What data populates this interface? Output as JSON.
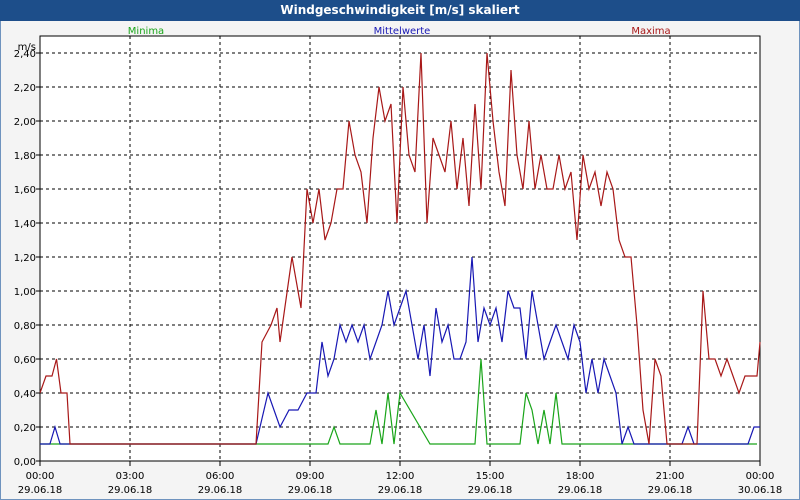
{
  "chart_data": {
    "type": "line",
    "title": "Windgeschwindigkeit [m/s] skaliert",
    "ylabel": "m/s",
    "ylim": [
      0,
      2.5
    ],
    "yticks": [
      "0,00",
      "0,20",
      "0,40",
      "0,60",
      "0,80",
      "1,00",
      "1,20",
      "1,40",
      "1,60",
      "1,80",
      "2,00",
      "2,20",
      "2,40"
    ],
    "xlim_hours": [
      0,
      24
    ],
    "xticks": [
      {
        "time": "00:00",
        "date": "29.06.18"
      },
      {
        "time": "03:00",
        "date": "29.06.18"
      },
      {
        "time": "06:00",
        "date": "29.06.18"
      },
      {
        "time": "09:00",
        "date": "29.06.18"
      },
      {
        "time": "12:00",
        "date": "29.06.18"
      },
      {
        "time": "15:00",
        "date": "29.06.18"
      },
      {
        "time": "18:00",
        "date": "29.06.18"
      },
      {
        "time": "21:00",
        "date": "29.06.18"
      },
      {
        "time": "00:00",
        "date": "30.06.18"
      }
    ],
    "series": [
      {
        "name": "Minima",
        "color": "#1aa51a",
        "x": [
          0,
          0.33,
          0.5,
          0.67,
          7.2,
          9.6,
          9.8,
          10.0,
          11.0,
          11.2,
          11.4,
          11.6,
          11.8,
          12.0,
          13.0,
          13.5,
          13.8,
          14.5,
          14.7,
          14.9,
          16.0,
          16.2,
          16.4,
          16.6,
          16.8,
          17.0,
          17.2,
          17.4,
          17.6,
          17.8,
          18.0,
          23.9
        ],
        "values": [
          0.1,
          0.1,
          0.1,
          0.1,
          0.1,
          0.1,
          0.2,
          0.1,
          0.1,
          0.3,
          0.1,
          0.4,
          0.1,
          0.4,
          0.1,
          0.1,
          0.1,
          0.1,
          0.6,
          0.1,
          0.1,
          0.4,
          0.3,
          0.1,
          0.3,
          0.1,
          0.4,
          0.1,
          0.1,
          0.1,
          0.1,
          0.1
        ]
      },
      {
        "name": "Mittelwerte",
        "color": "#1818b4",
        "x": [
          0,
          0.33,
          0.5,
          0.67,
          0.8,
          7.2,
          7.6,
          8.0,
          8.3,
          8.6,
          8.9,
          9.2,
          9.4,
          9.6,
          9.8,
          10.0,
          10.2,
          10.4,
          10.6,
          10.8,
          11.0,
          11.2,
          11.4,
          11.6,
          11.8,
          12.0,
          12.2,
          12.4,
          12.6,
          12.8,
          13.0,
          13.2,
          13.4,
          13.6,
          13.8,
          14.0,
          14.2,
          14.4,
          14.6,
          14.8,
          15.0,
          15.2,
          15.4,
          15.6,
          15.8,
          16.0,
          16.2,
          16.4,
          16.6,
          16.8,
          17.0,
          17.2,
          17.4,
          17.6,
          17.8,
          18.0,
          18.2,
          18.4,
          18.6,
          18.8,
          19.0,
          19.2,
          19.4,
          19.6,
          19.8,
          20.0,
          20.2,
          20.4,
          20.6,
          20.8,
          21.0,
          21.2,
          21.4,
          21.6,
          21.8,
          22.0,
          22.2,
          22.4,
          22.6,
          22.8,
          23.0,
          23.2,
          23.4,
          23.6,
          23.8,
          24.0
        ],
        "values": [
          0.1,
          0.1,
          0.2,
          0.1,
          0.1,
          0.1,
          0.4,
          0.2,
          0.3,
          0.3,
          0.4,
          0.4,
          0.7,
          0.5,
          0.6,
          0.8,
          0.7,
          0.8,
          0.7,
          0.8,
          0.6,
          0.7,
          0.8,
          1.0,
          0.8,
          0.9,
          1.0,
          0.8,
          0.6,
          0.8,
          0.5,
          0.9,
          0.7,
          0.8,
          0.6,
          0.6,
          0.7,
          1.2,
          0.7,
          0.9,
          0.8,
          0.9,
          0.7,
          1.0,
          0.9,
          0.9,
          0.6,
          1.0,
          0.8,
          0.6,
          0.7,
          0.8,
          0.7,
          0.6,
          0.8,
          0.7,
          0.4,
          0.6,
          0.4,
          0.6,
          0.5,
          0.4,
          0.1,
          0.2,
          0.1,
          0.1,
          0.1,
          0.1,
          0.1,
          0.1,
          0.1,
          0.1,
          0.1,
          0.2,
          0.1,
          0.1,
          0.1,
          0.1,
          0.1,
          0.1,
          0.1,
          0.1,
          0.1,
          0.1,
          0.2,
          0.2
        ]
      },
      {
        "name": "Maxima",
        "color": "#a81818",
        "x": [
          0,
          0.2,
          0.4,
          0.55,
          0.7,
          0.9,
          1.0,
          7.2,
          7.4,
          7.7,
          7.9,
          8.0,
          8.4,
          8.7,
          8.9,
          9.1,
          9.3,
          9.5,
          9.7,
          9.9,
          10.1,
          10.3,
          10.5,
          10.7,
          10.9,
          11.1,
          11.3,
          11.5,
          11.7,
          11.9,
          12.1,
          12.3,
          12.5,
          12.7,
          12.9,
          13.1,
          13.3,
          13.5,
          13.7,
          13.9,
          14.1,
          14.3,
          14.5,
          14.7,
          14.9,
          15.1,
          15.3,
          15.5,
          15.7,
          15.9,
          16.1,
          16.3,
          16.5,
          16.7,
          16.9,
          17.1,
          17.3,
          17.5,
          17.7,
          17.9,
          18.1,
          18.3,
          18.5,
          18.7,
          18.9,
          19.1,
          19.3,
          19.5,
          19.7,
          19.9,
          20.1,
          20.3,
          20.5,
          20.7,
          20.9,
          21.1,
          21.3,
          21.5,
          21.7,
          21.9,
          22.1,
          22.3,
          22.5,
          22.7,
          22.9,
          23.1,
          23.3,
          23.5,
          23.7,
          23.9,
          24.0
        ],
        "values": [
          0.4,
          0.5,
          0.5,
          0.6,
          0.4,
          0.4,
          0.1,
          0.1,
          0.7,
          0.8,
          0.9,
          0.7,
          1.2,
          0.9,
          1.6,
          1.4,
          1.6,
          1.3,
          1.4,
          1.6,
          1.6,
          2.0,
          1.8,
          1.7,
          1.4,
          1.9,
          2.2,
          2.0,
          2.1,
          1.4,
          2.2,
          1.8,
          1.7,
          2.4,
          1.4,
          1.9,
          1.8,
          1.7,
          2.0,
          1.6,
          1.9,
          1.5,
          2.1,
          1.6,
          2.4,
          2.0,
          1.7,
          1.5,
          2.3,
          1.8,
          1.6,
          2.0,
          1.6,
          1.8,
          1.6,
          1.6,
          1.8,
          1.6,
          1.7,
          1.3,
          1.8,
          1.6,
          1.7,
          1.5,
          1.7,
          1.6,
          1.3,
          1.2,
          1.2,
          0.8,
          0.3,
          0.1,
          0.6,
          0.5,
          0.1,
          0.1,
          0.1,
          0.1,
          0.1,
          0.1,
          1.0,
          0.6,
          0.6,
          0.5,
          0.6,
          0.5,
          0.4,
          0.5,
          0.5,
          0.5,
          0.7
        ]
      }
    ],
    "legend": [
      "Minima",
      "Mittelwerte",
      "Maxima"
    ],
    "grid": true
  }
}
